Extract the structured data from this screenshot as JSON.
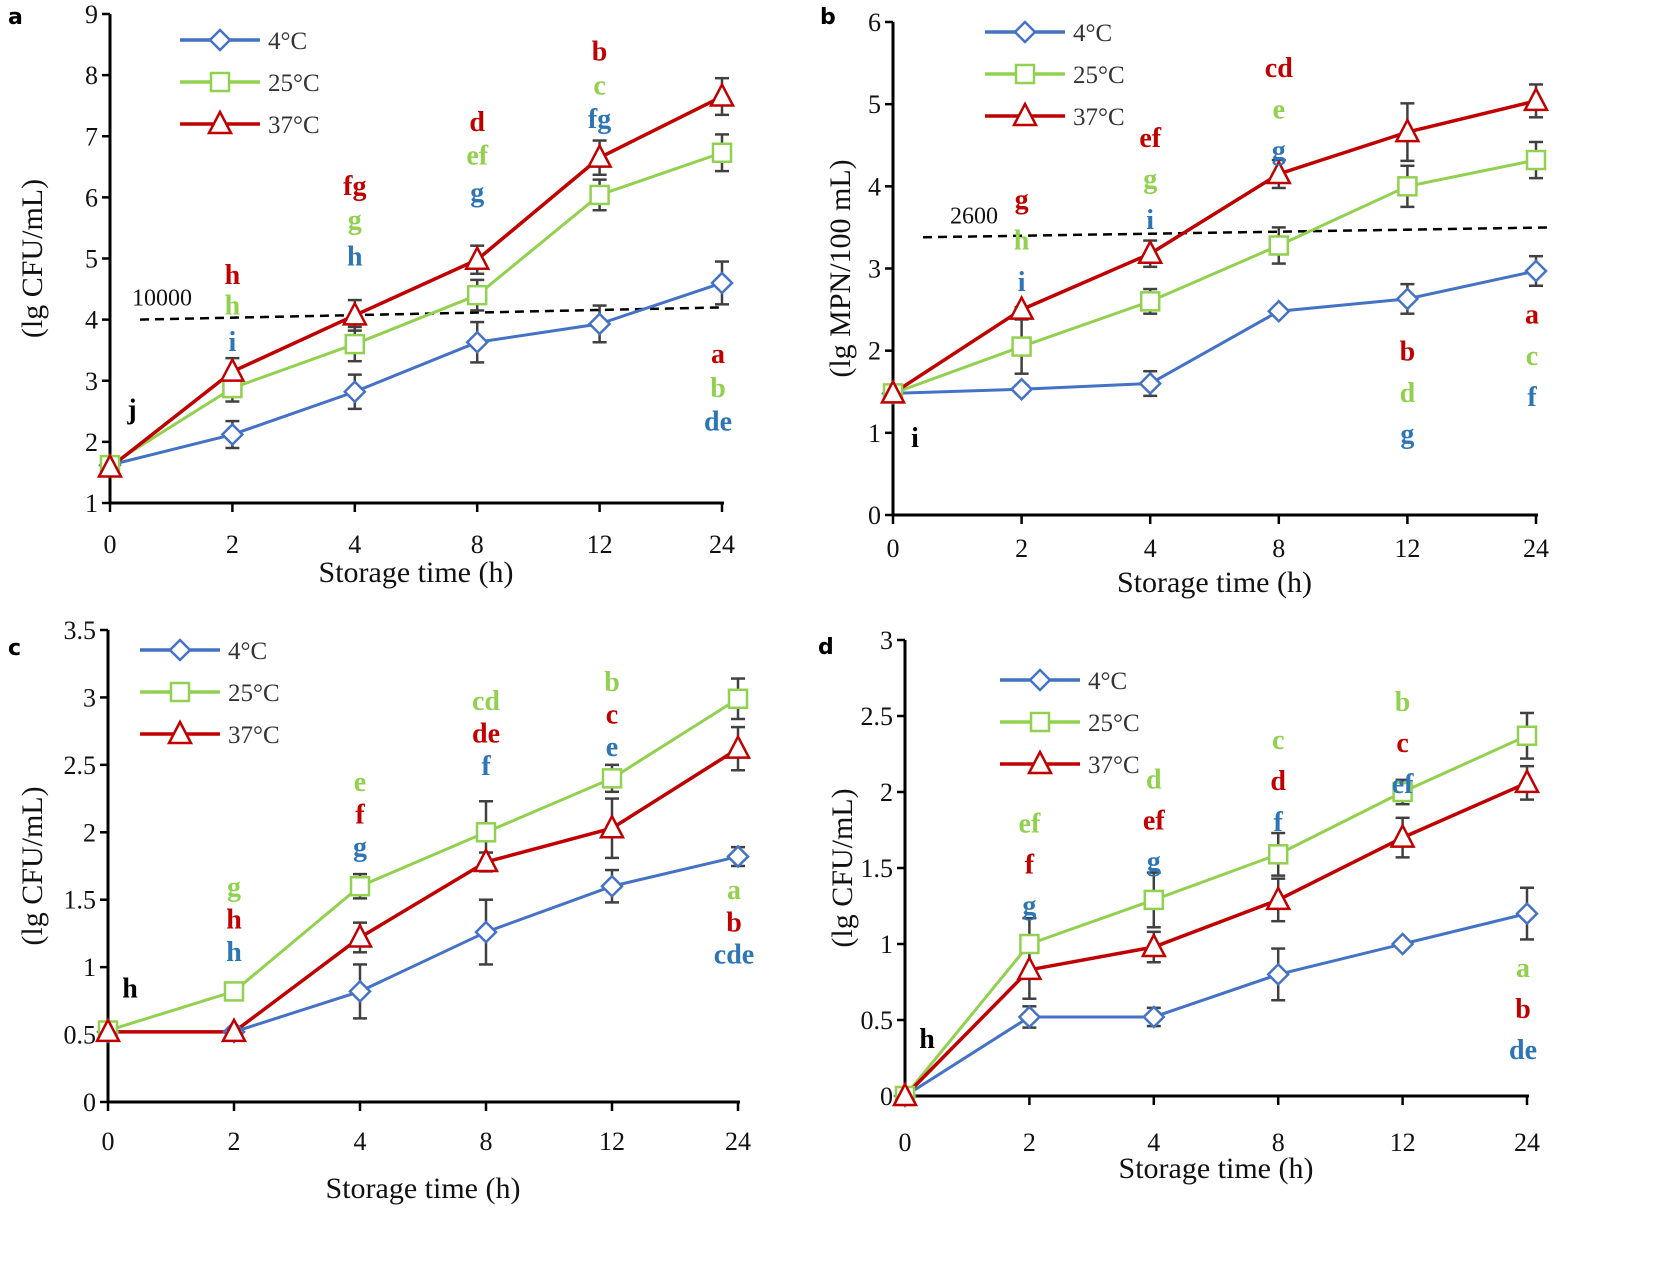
{
  "figure": {
    "series_colors": {
      "4C": "#4472c4",
      "25C": "#92d050",
      "37C": "#c00000"
    },
    "letter_colors": {
      "4C": "#2e75b6",
      "25C": "#92d050",
      "37C": "#c00000",
      "all": "#000000"
    },
    "errorbar_color": "#404040"
  },
  "chart_data": [
    {
      "panel": "a",
      "type": "line",
      "xlabel": "Storage time (h)",
      "ylabel": "(lg CFU/mL)",
      "categories": [
        "0",
        "2",
        "4",
        "8",
        "12",
        "24"
      ],
      "ylim": [
        1,
        9
      ],
      "yticks": [
        "1",
        "2",
        "3",
        "4",
        "5",
        "6",
        "7",
        "8",
        "9"
      ],
      "ytick_values": [
        1,
        2,
        3,
        4,
        5,
        6,
        7,
        8,
        9
      ],
      "legend": {
        "placement": "top-left",
        "entries": [
          "4°C",
          "25°C",
          "37°C"
        ]
      },
      "series": [
        {
          "name": "4°C",
          "key": "4C",
          "marker": "diamond",
          "values": [
            1.62,
            2.12,
            2.82,
            3.63,
            3.93,
            4.6
          ],
          "errors": [
            0.05,
            0.22,
            0.28,
            0.33,
            0.3,
            0.35
          ]
        },
        {
          "name": "25°C",
          "key": "25C",
          "marker": "square",
          "values": [
            1.62,
            2.88,
            3.6,
            4.4,
            6.04,
            6.73
          ],
          "errors": [
            0.05,
            0.22,
            0.28,
            0.25,
            0.25,
            0.3
          ]
        },
        {
          "name": "37°C",
          "key": "37C",
          "marker": "triangle",
          "values": [
            1.58,
            3.15,
            4.07,
            4.98,
            6.65,
            7.65
          ],
          "errors": [
            0.05,
            0.22,
            0.25,
            0.23,
            0.28,
            0.3
          ]
        }
      ],
      "threshold": {
        "label": "10000",
        "start": 4.0,
        "end": 4.2
      },
      "significance": [
        {
          "x_index": 0,
          "rows": [
            {
              "text": "j",
              "key": "all",
              "y": 2.55
            }
          ]
        },
        {
          "x_index": 1,
          "rows": [
            {
              "text": "h",
              "key": "37C",
              "y": 4.75
            },
            {
              "text": "h",
              "key": "25C",
              "y": 4.25
            },
            {
              "text": "i",
              "key": "4C",
              "y": 3.65
            }
          ]
        },
        {
          "x_index": 2,
          "rows": [
            {
              "text": "fg",
              "key": "37C",
              "y": 6.2
            },
            {
              "text": "g",
              "key": "25C",
              "y": 5.65
            },
            {
              "text": "h",
              "key": "4C",
              "y": 5.05
            }
          ]
        },
        {
          "x_index": 3,
          "rows": [
            {
              "text": "d",
              "key": "37C",
              "y": 7.25
            },
            {
              "text": "ef",
              "key": "25C",
              "y": 6.7
            },
            {
              "text": "g",
              "key": "4C",
              "y": 6.1
            }
          ]
        },
        {
          "x_index": 4,
          "rows": [
            {
              "text": "b",
              "key": "37C",
              "y": 8.4
            },
            {
              "text": "c",
              "key": "25C",
              "y": 7.85
            },
            {
              "text": "fg",
              "key": "4C",
              "y": 7.3
            }
          ]
        },
        {
          "x_index": 5,
          "rows": [
            {
              "text": "a",
              "key": "37C",
              "y": 3.45
            },
            {
              "text": "b",
              "key": "25C",
              "y": 2.9
            },
            {
              "text": "de",
              "key": "4C",
              "y": 2.35
            }
          ]
        }
      ]
    },
    {
      "panel": "b",
      "type": "line",
      "xlabel": "Storage time (h)",
      "ylabel": "(lg MPN/100 mL)",
      "categories": [
        "0",
        "2",
        "4",
        "8",
        "12",
        "24"
      ],
      "ylim": [
        0,
        6
      ],
      "yticks": [
        "0",
        "1",
        "2",
        "3",
        "4",
        "5",
        "6"
      ],
      "ytick_values": [
        0,
        1,
        2,
        3,
        4,
        5,
        6
      ],
      "legend": {
        "placement": "top-left",
        "entries": [
          "4°C",
          "25°C",
          "37°C"
        ]
      },
      "series": [
        {
          "name": "4°C",
          "key": "4C",
          "marker": "diamond",
          "values": [
            1.48,
            1.53,
            1.6,
            2.48,
            2.63,
            2.97
          ],
          "errors": [
            0.03,
            0.05,
            0.15,
            0.03,
            0.18,
            0.18
          ]
        },
        {
          "name": "25°C",
          "key": "25C",
          "marker": "square",
          "values": [
            1.48,
            2.05,
            2.6,
            3.28,
            4.0,
            4.32
          ],
          "errors": [
            0.03,
            0.33,
            0.15,
            0.22,
            0.25,
            0.22
          ]
        },
        {
          "name": "37°C",
          "key": "37C",
          "marker": "triangle",
          "values": [
            1.48,
            2.5,
            3.18,
            4.15,
            4.66,
            5.04
          ],
          "errors": [
            0.03,
            0.03,
            0.16,
            0.17,
            0.35,
            0.2
          ]
        }
      ],
      "threshold": {
        "label": "2600",
        "start": 3.38,
        "end": 3.5
      },
      "significance": [
        {
          "x_index": 0,
          "rows": [
            {
              "text": "i",
              "key": "all",
              "y": 0.95
            }
          ]
        },
        {
          "x_index": 1,
          "rows": [
            {
              "text": "g",
              "key": "37C",
              "y": 3.85
            },
            {
              "text": "h",
              "key": "25C",
              "y": 3.35
            },
            {
              "text": "i",
              "key": "4C",
              "y": 2.85
            }
          ]
        },
        {
          "x_index": 2,
          "rows": [
            {
              "text": "ef",
              "key": "37C",
              "y": 4.6
            },
            {
              "text": "g",
              "key": "25C",
              "y": 4.1
            },
            {
              "text": "i",
              "key": "4C",
              "y": 3.6
            }
          ]
        },
        {
          "x_index": 3,
          "rows": [
            {
              "text": "cd",
              "key": "37C",
              "y": 5.45
            },
            {
              "text": "e",
              "key": "25C",
              "y": 4.95
            },
            {
              "text": "g",
              "key": "4C",
              "y": 4.45
            }
          ]
        },
        {
          "x_index": 4,
          "rows": [
            {
              "text": "b",
              "key": "37C",
              "y": 2.0
            },
            {
              "text": "d",
              "key": "25C",
              "y": 1.5
            },
            {
              "text": "g",
              "key": "4C",
              "y": 1.0
            }
          ]
        },
        {
          "x_index": 5,
          "rows": [
            {
              "text": "a",
              "key": "37C",
              "y": 2.45
            },
            {
              "text": "c",
              "key": "25C",
              "y": 1.95
            },
            {
              "text": "f",
              "key": "4C",
              "y": 1.45
            }
          ]
        }
      ]
    },
    {
      "panel": "c",
      "type": "line",
      "xlabel": "Storage time (h)",
      "ylabel": "(lg CFU/mL)",
      "categories": [
        "0",
        "2",
        "4",
        "8",
        "12",
        "24"
      ],
      "ylim": [
        0,
        3.5
      ],
      "yticks": [
        "0",
        "0.5",
        "1",
        "1.5",
        "2",
        "2.5",
        "3",
        "3.5"
      ],
      "ytick_values": [
        0,
        0.5,
        1,
        1.5,
        2,
        2.5,
        3,
        3.5
      ],
      "legend": {
        "placement": "top-left",
        "entries": [
          "4°C",
          "25°C",
          "37°C"
        ]
      },
      "series": [
        {
          "name": "4°C",
          "key": "4C",
          "marker": "diamond",
          "values": [
            0.52,
            0.52,
            0.82,
            1.26,
            1.6,
            1.82
          ],
          "errors": [
            0.02,
            0.03,
            0.2,
            0.24,
            0.12,
            0.07
          ]
        },
        {
          "name": "25°C",
          "key": "25C",
          "marker": "square",
          "values": [
            0.53,
            0.82,
            1.6,
            2.0,
            2.4,
            2.99
          ],
          "errors": [
            0.02,
            0.06,
            0.09,
            0.23,
            0.1,
            0.15
          ]
        },
        {
          "name": "37°C",
          "key": "37C",
          "marker": "triangle",
          "values": [
            0.52,
            0.52,
            1.22,
            1.78,
            2.03,
            2.62
          ],
          "errors": [
            0.02,
            0.03,
            0.11,
            0.07,
            0.22,
            0.16
          ]
        }
      ],
      "significance": [
        {
          "x_index": 0,
          "rows": [
            {
              "text": "h",
              "key": "all",
              "y": 0.85
            }
          ]
        },
        {
          "x_index": 1,
          "rows": [
            {
              "text": "g",
              "key": "25C",
              "y": 1.6
            },
            {
              "text": "h",
              "key": "37C",
              "y": 1.36
            },
            {
              "text": "h",
              "key": "4C",
              "y": 1.12
            }
          ]
        },
        {
          "x_index": 2,
          "rows": [
            {
              "text": "e",
              "key": "25C",
              "y": 2.38
            },
            {
              "text": "f",
              "key": "37C",
              "y": 2.14
            },
            {
              "text": "g",
              "key": "4C",
              "y": 1.9
            }
          ]
        },
        {
          "x_index": 3,
          "rows": [
            {
              "text": "cd",
              "key": "25C",
              "y": 2.98
            },
            {
              "text": "de",
              "key": "37C",
              "y": 2.74
            },
            {
              "text": "f",
              "key": "4C",
              "y": 2.5
            }
          ]
        },
        {
          "x_index": 4,
          "rows": [
            {
              "text": "b",
              "key": "25C",
              "y": 3.12
            },
            {
              "text": "c",
              "key": "37C",
              "y": 2.88
            },
            {
              "text": "e",
              "key": "4C",
              "y": 2.64
            }
          ]
        },
        {
          "x_index": 5,
          "rows": [
            {
              "text": "a",
              "key": "25C",
              "y": 1.58
            },
            {
              "text": "b",
              "key": "37C",
              "y": 1.34
            },
            {
              "text": "cde",
              "key": "4C",
              "y": 1.1
            }
          ]
        }
      ]
    },
    {
      "panel": "d",
      "type": "line",
      "xlabel": "Storage time (h)",
      "ylabel": "(lg CFU/mL)",
      "categories": [
        "0",
        "2",
        "4",
        "8",
        "12",
        "24"
      ],
      "ylim": [
        0,
        3
      ],
      "yticks": [
        "0",
        "0.5",
        "1",
        "1.5",
        "2",
        "2.5",
        "3"
      ],
      "ytick_values": [
        0,
        0.5,
        1,
        1.5,
        2,
        2.5,
        3
      ],
      "legend": {
        "placement": "top-left",
        "entries": [
          "4°C",
          "25°C",
          "37°C"
        ]
      },
      "series": [
        {
          "name": "4°C",
          "key": "4C",
          "marker": "diamond",
          "values": [
            0.0,
            0.52,
            0.52,
            0.8,
            1.0,
            1.2
          ],
          "errors": [
            0.0,
            0.07,
            0.06,
            0.17,
            0.01,
            0.17
          ]
        },
        {
          "name": "25°C",
          "key": "25C",
          "marker": "square",
          "values": [
            0.0,
            1.0,
            1.29,
            1.59,
            2.0,
            2.37
          ],
          "errors": [
            0.0,
            0.17,
            0.18,
            0.14,
            0.08,
            0.15
          ]
        },
        {
          "name": "37°C",
          "key": "37C",
          "marker": "triangle",
          "values": [
            0.0,
            0.83,
            0.98,
            1.29,
            1.7,
            2.06
          ],
          "errors": [
            0.0,
            0.19,
            0.1,
            0.14,
            0.13,
            0.11
          ]
        }
      ],
      "significance": [
        {
          "x_index": 0,
          "rows": [
            {
              "text": "h",
              "key": "all",
              "y": 0.38
            }
          ]
        },
        {
          "x_index": 1,
          "rows": [
            {
              "text": "ef",
              "key": "25C",
              "y": 1.8
            },
            {
              "text": "f",
              "key": "37C",
              "y": 1.53
            },
            {
              "text": "g",
              "key": "4C",
              "y": 1.26
            }
          ]
        },
        {
          "x_index": 2,
          "rows": [
            {
              "text": "d",
              "key": "25C",
              "y": 2.09
            },
            {
              "text": "ef",
              "key": "37C",
              "y": 1.82
            },
            {
              "text": "g",
              "key": "4C",
              "y": 1.55
            }
          ]
        },
        {
          "x_index": 3,
          "rows": [
            {
              "text": "c",
              "key": "25C",
              "y": 2.35
            },
            {
              "text": "d",
              "key": "37C",
              "y": 2.08
            },
            {
              "text": "f",
              "key": "4C",
              "y": 1.81
            }
          ]
        },
        {
          "x_index": 4,
          "rows": [
            {
              "text": "b",
              "key": "25C",
              "y": 2.6
            },
            {
              "text": "c",
              "key": "37C",
              "y": 2.33
            },
            {
              "text": "ef",
              "key": "4C",
              "y": 2.06
            }
          ]
        },
        {
          "x_index": 5,
          "rows": [
            {
              "text": "a",
              "key": "25C",
              "y": 0.85
            },
            {
              "text": "b",
              "key": "37C",
              "y": 0.58
            },
            {
              "text": "de",
              "key": "4C",
              "y": 0.31
            }
          ]
        }
      ]
    }
  ]
}
